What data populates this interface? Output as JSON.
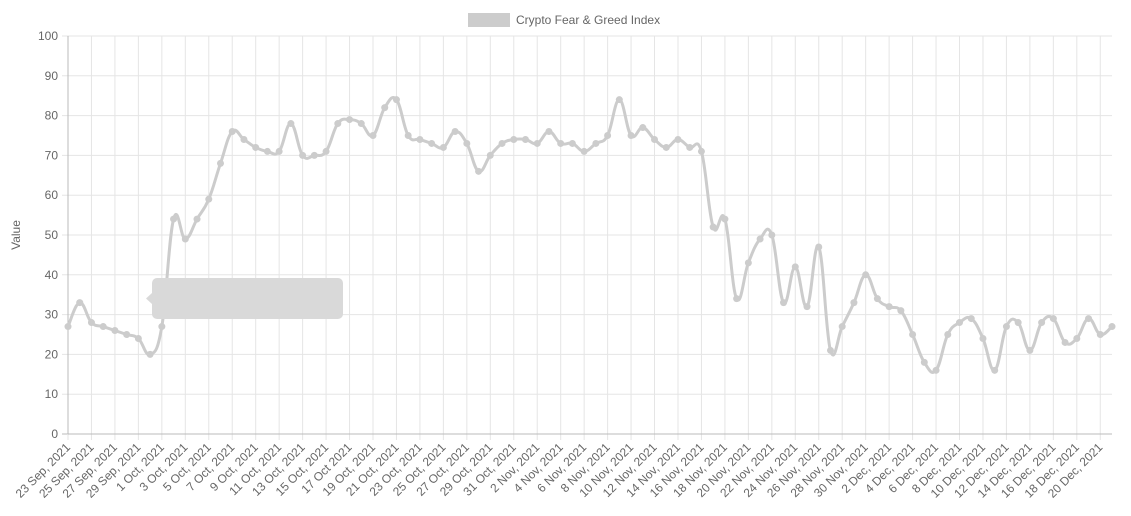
{
  "chart_data": {
    "type": "line",
    "y_label": "Value",
    "categories": [
      "23 Sep, 2021",
      null,
      "25 Sep, 2021",
      null,
      "27 Sep, 2021",
      null,
      "29 Sep, 2021",
      null,
      "1 Oct, 2021",
      null,
      "3 Oct, 2021",
      null,
      "5 Oct, 2021",
      null,
      "7 Oct, 2021",
      null,
      "9 Oct, 2021",
      null,
      "11 Oct, 2021",
      null,
      "13 Oct, 2021",
      null,
      "15 Oct, 2021",
      null,
      "17 Oct 2021",
      null,
      "19 Oct, 2021",
      null,
      "21 Oct, 2021",
      null,
      "23 Oct, 2021",
      null,
      "25 Oct, 2021",
      null,
      "27 Oct, 2021",
      null,
      "29 Oct, 2021",
      null,
      "31 Oct, 2021",
      null,
      "2 Nov, 2021",
      null,
      "4 Nov, 2021",
      null,
      "6 Nov, 2021",
      null,
      "8 Nov, 2021",
      null,
      "10 Nov, 2021",
      null,
      "12 Nov, 2021",
      null,
      "14 Nov, 2021",
      null,
      "16 Nov, 2021",
      null,
      "18 Nov, 2021",
      null,
      "20 Nov, 2021",
      null,
      "22 Nov, 2021",
      null,
      "24 Nov, 2021",
      null,
      "26 Nov, 2021",
      null,
      "28 Nov, 2021",
      null,
      "30 Nov, 2021",
      null,
      "2 Dec, 2021",
      null,
      "4 Dec, 2021",
      null,
      "6 Dec, 2021",
      null,
      "8 Dec, 2021",
      null,
      "10 Dec, 2021",
      null,
      "12 Dec, 2021",
      null,
      "14 Dec, 2021",
      null,
      "16 Dec, 2021",
      null,
      "18 Dec, 2021",
      null,
      "20 Dec, 2021",
      null
    ],
    "series": [
      {
        "name": "Crypto Fear & Greed Index",
        "color": "#cccccc",
        "values": [
          27,
          33,
          28,
          27,
          26,
          25,
          24,
          20,
          27,
          54,
          49,
          54,
          59,
          68,
          76,
          74,
          72,
          71,
          71,
          78,
          70,
          70,
          71,
          78,
          79,
          78,
          75,
          82,
          84,
          75,
          74,
          73,
          72,
          76,
          73,
          66,
          70,
          73,
          74,
          74,
          73,
          76,
          73,
          73,
          71,
          73,
          75,
          84,
          75,
          77,
          74,
          72,
          74,
          72,
          71,
          52,
          54,
          34,
          43,
          49,
          50,
          33,
          42,
          32,
          47,
          21,
          27,
          33,
          40,
          34,
          32,
          31,
          25,
          18,
          16,
          25,
          28,
          29,
          24,
          16,
          27,
          28,
          21,
          28,
          29,
          23,
          24,
          29,
          25,
          27
        ]
      }
    ],
    "ylim": [
      0,
      100
    ],
    "yticks": [
      0,
      10,
      20,
      30,
      40,
      50,
      60,
      70,
      80,
      90,
      100
    ],
    "grid": true
  }
}
